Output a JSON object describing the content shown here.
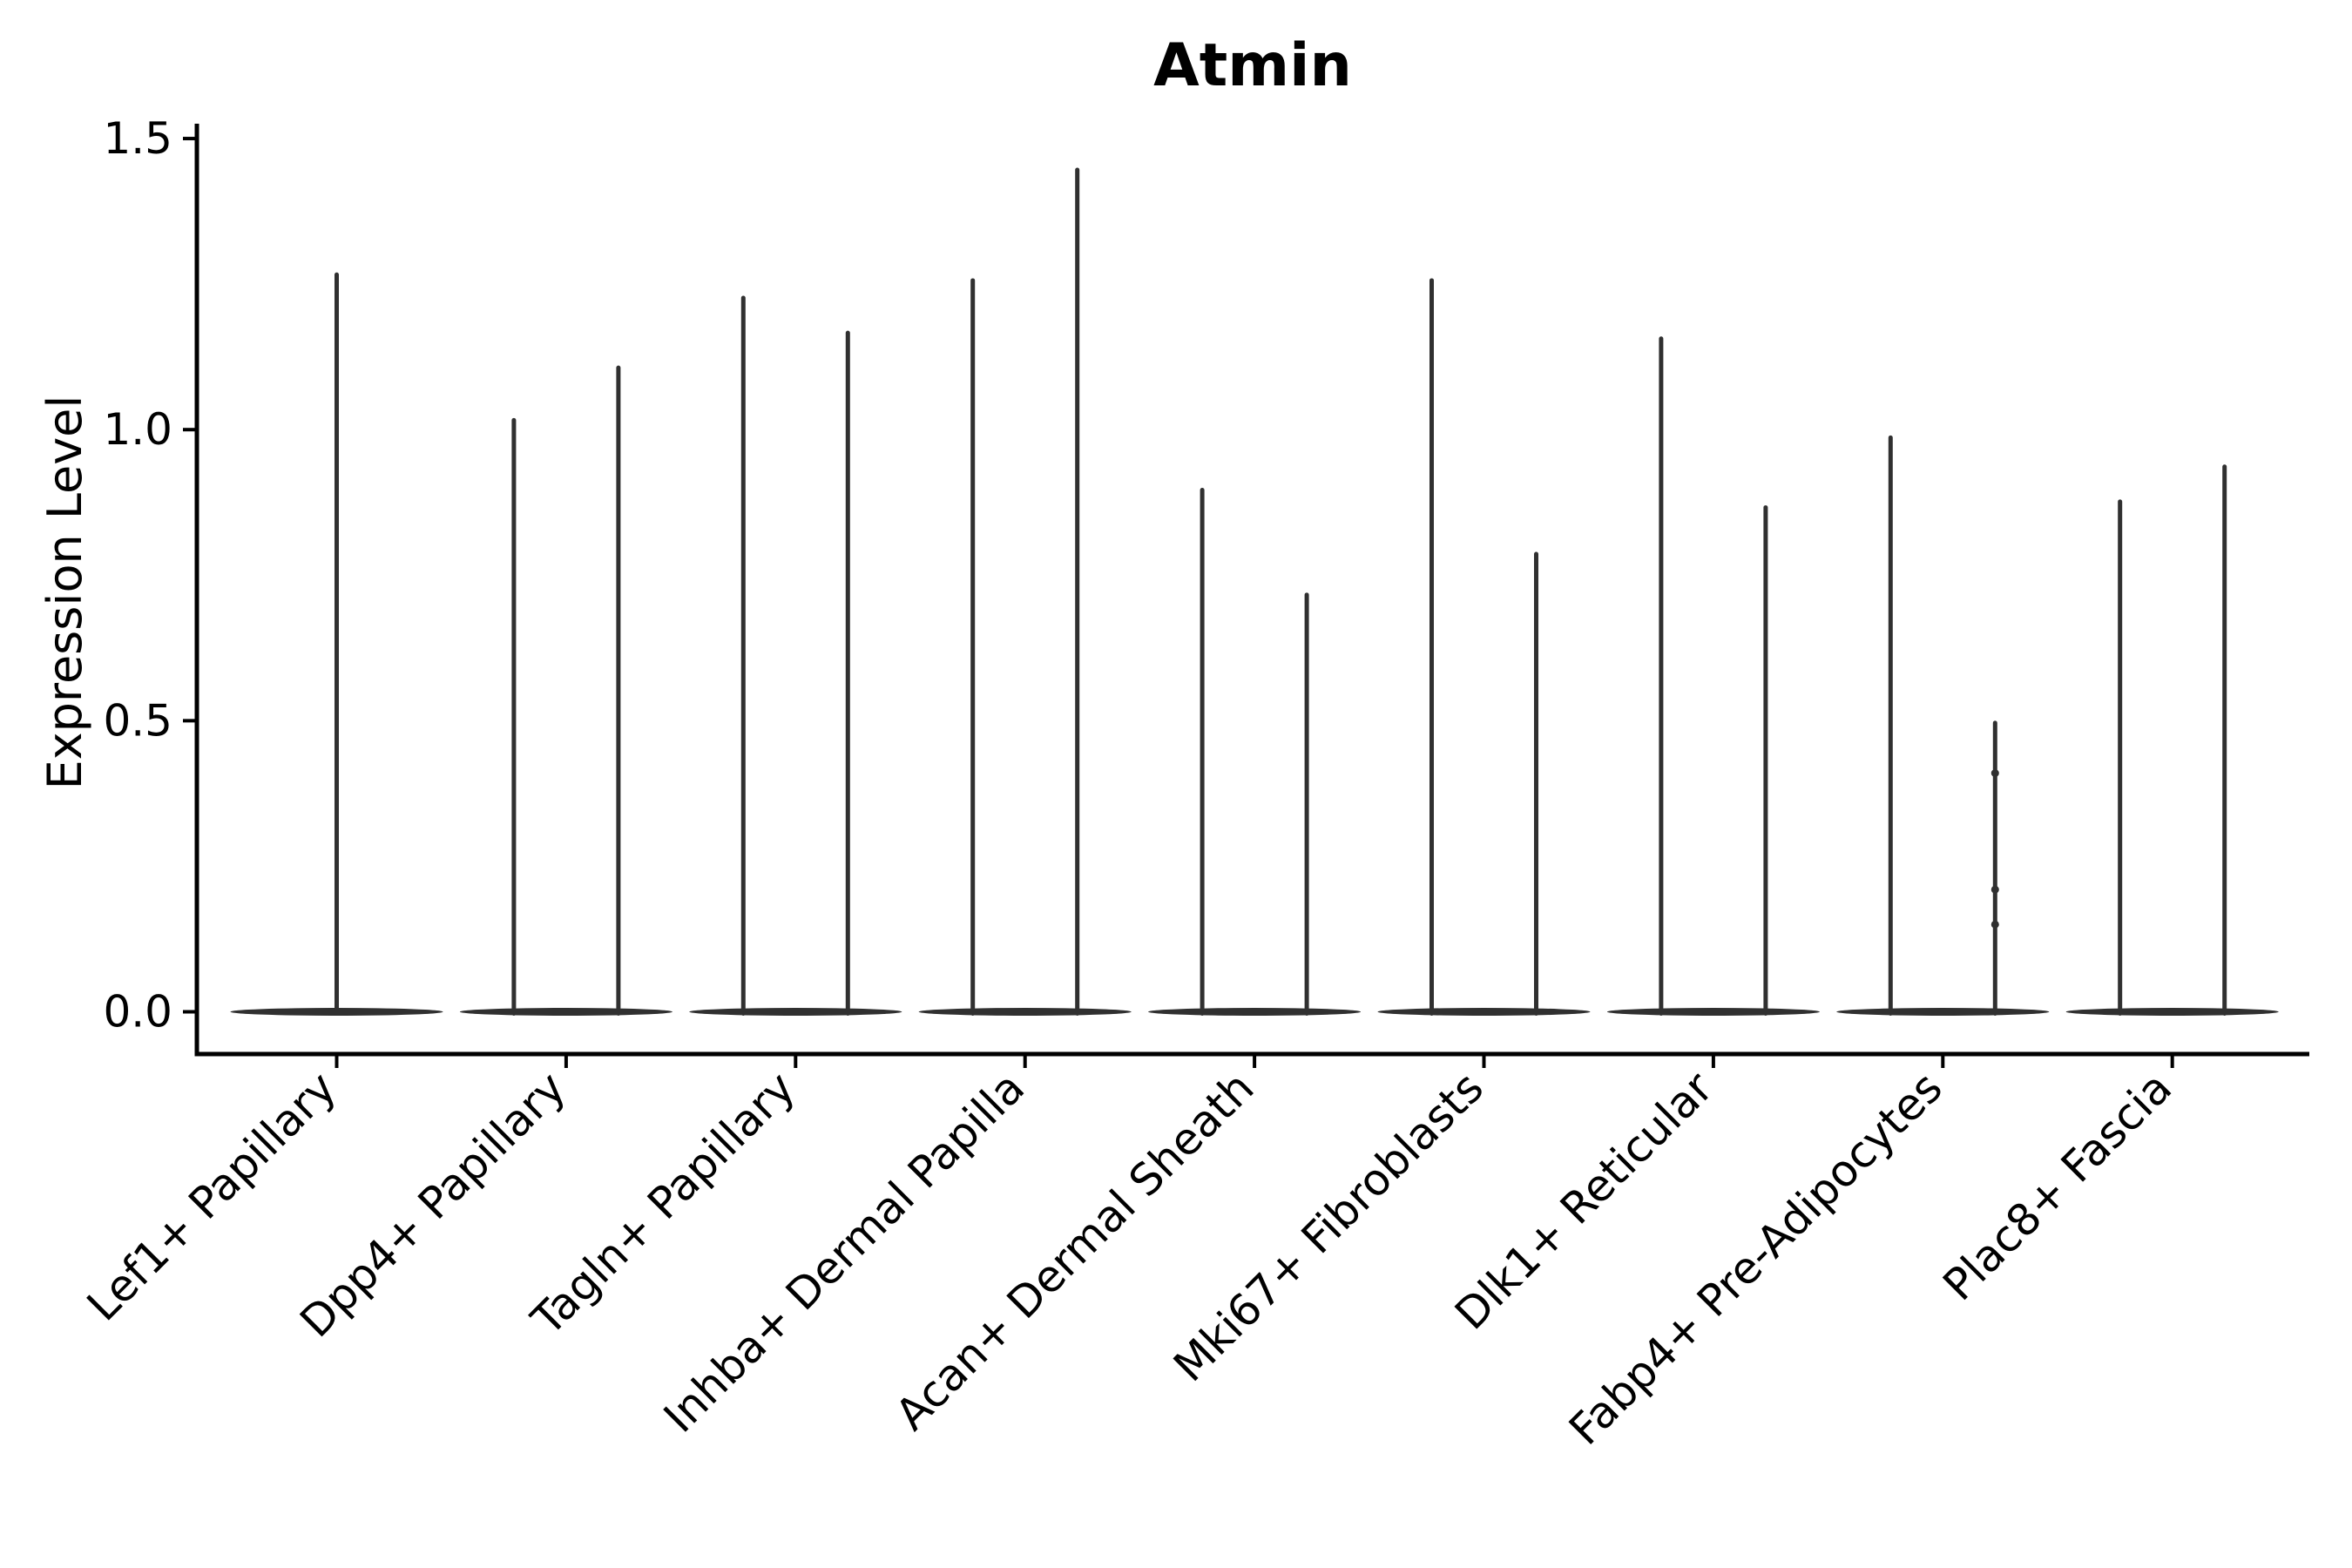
{
  "chart_data": {
    "type": "violin",
    "title": "Atmin",
    "ylabel": "Expression Level",
    "xlabel": "",
    "ytick_labels": [
      "0.0",
      "0.5",
      "1.0",
      "1.5"
    ],
    "ytick_values": [
      0.0,
      0.5,
      1.0,
      1.5
    ],
    "ylim": [
      0,
      1.55
    ],
    "x_tick_rotation": 45,
    "grid": false,
    "legend": false,
    "colors": {
      "violin": "#303030",
      "axis": "#000000",
      "text": "#000000"
    },
    "categories": [
      "Lef1+ Papillary",
      "Dpp4+ Papillary",
      "Tagln+ Papillary",
      "Inhba+ Dermal Papilla",
      "Acan+ Dermal Sheath",
      "Mki67+ Fibroblasts",
      "Dlk1+ Reticular",
      "Fabp4+ Pre-Adipocytes",
      "Plac8+ Fascia"
    ],
    "violins": [
      {
        "category": "Lef1+ Papillary",
        "spikes": [
          {
            "position": "center",
            "max": 1.27
          }
        ]
      },
      {
        "category": "Dpp4+ Papillary",
        "spikes": [
          {
            "position": "left",
            "max": 1.02
          },
          {
            "position": "right",
            "max": 1.11
          }
        ]
      },
      {
        "category": "Tagln+ Papillary",
        "spikes": [
          {
            "position": "left",
            "max": 1.23
          },
          {
            "position": "right",
            "max": 1.17
          }
        ]
      },
      {
        "category": "Inhba+ Dermal Papilla",
        "spikes": [
          {
            "position": "left",
            "max": 1.26
          },
          {
            "position": "right",
            "max": 1.45
          }
        ]
      },
      {
        "category": "Acan+ Dermal Sheath",
        "spikes": [
          {
            "position": "left",
            "max": 0.9
          },
          {
            "position": "right",
            "max": 0.72
          }
        ]
      },
      {
        "category": "Mki67+ Fibroblasts",
        "spikes": [
          {
            "position": "left",
            "max": 1.26
          },
          {
            "position": "right",
            "max": 0.79
          }
        ]
      },
      {
        "category": "Dlk1+ Reticular",
        "spikes": [
          {
            "position": "left",
            "max": 1.16
          },
          {
            "position": "right",
            "max": 0.87
          }
        ]
      },
      {
        "category": "Fabp4+ Pre-Adipocytes",
        "spikes": [
          {
            "position": "left",
            "max": 0.99
          },
          {
            "position": "right",
            "max": 0.5,
            "dots": [
              0.41,
              0.21,
              0.15
            ]
          }
        ]
      },
      {
        "category": "Plac8+ Fascia",
        "spikes": [
          {
            "position": "left",
            "max": 0.88
          },
          {
            "position": "right",
            "max": 0.94
          }
        ]
      }
    ]
  }
}
